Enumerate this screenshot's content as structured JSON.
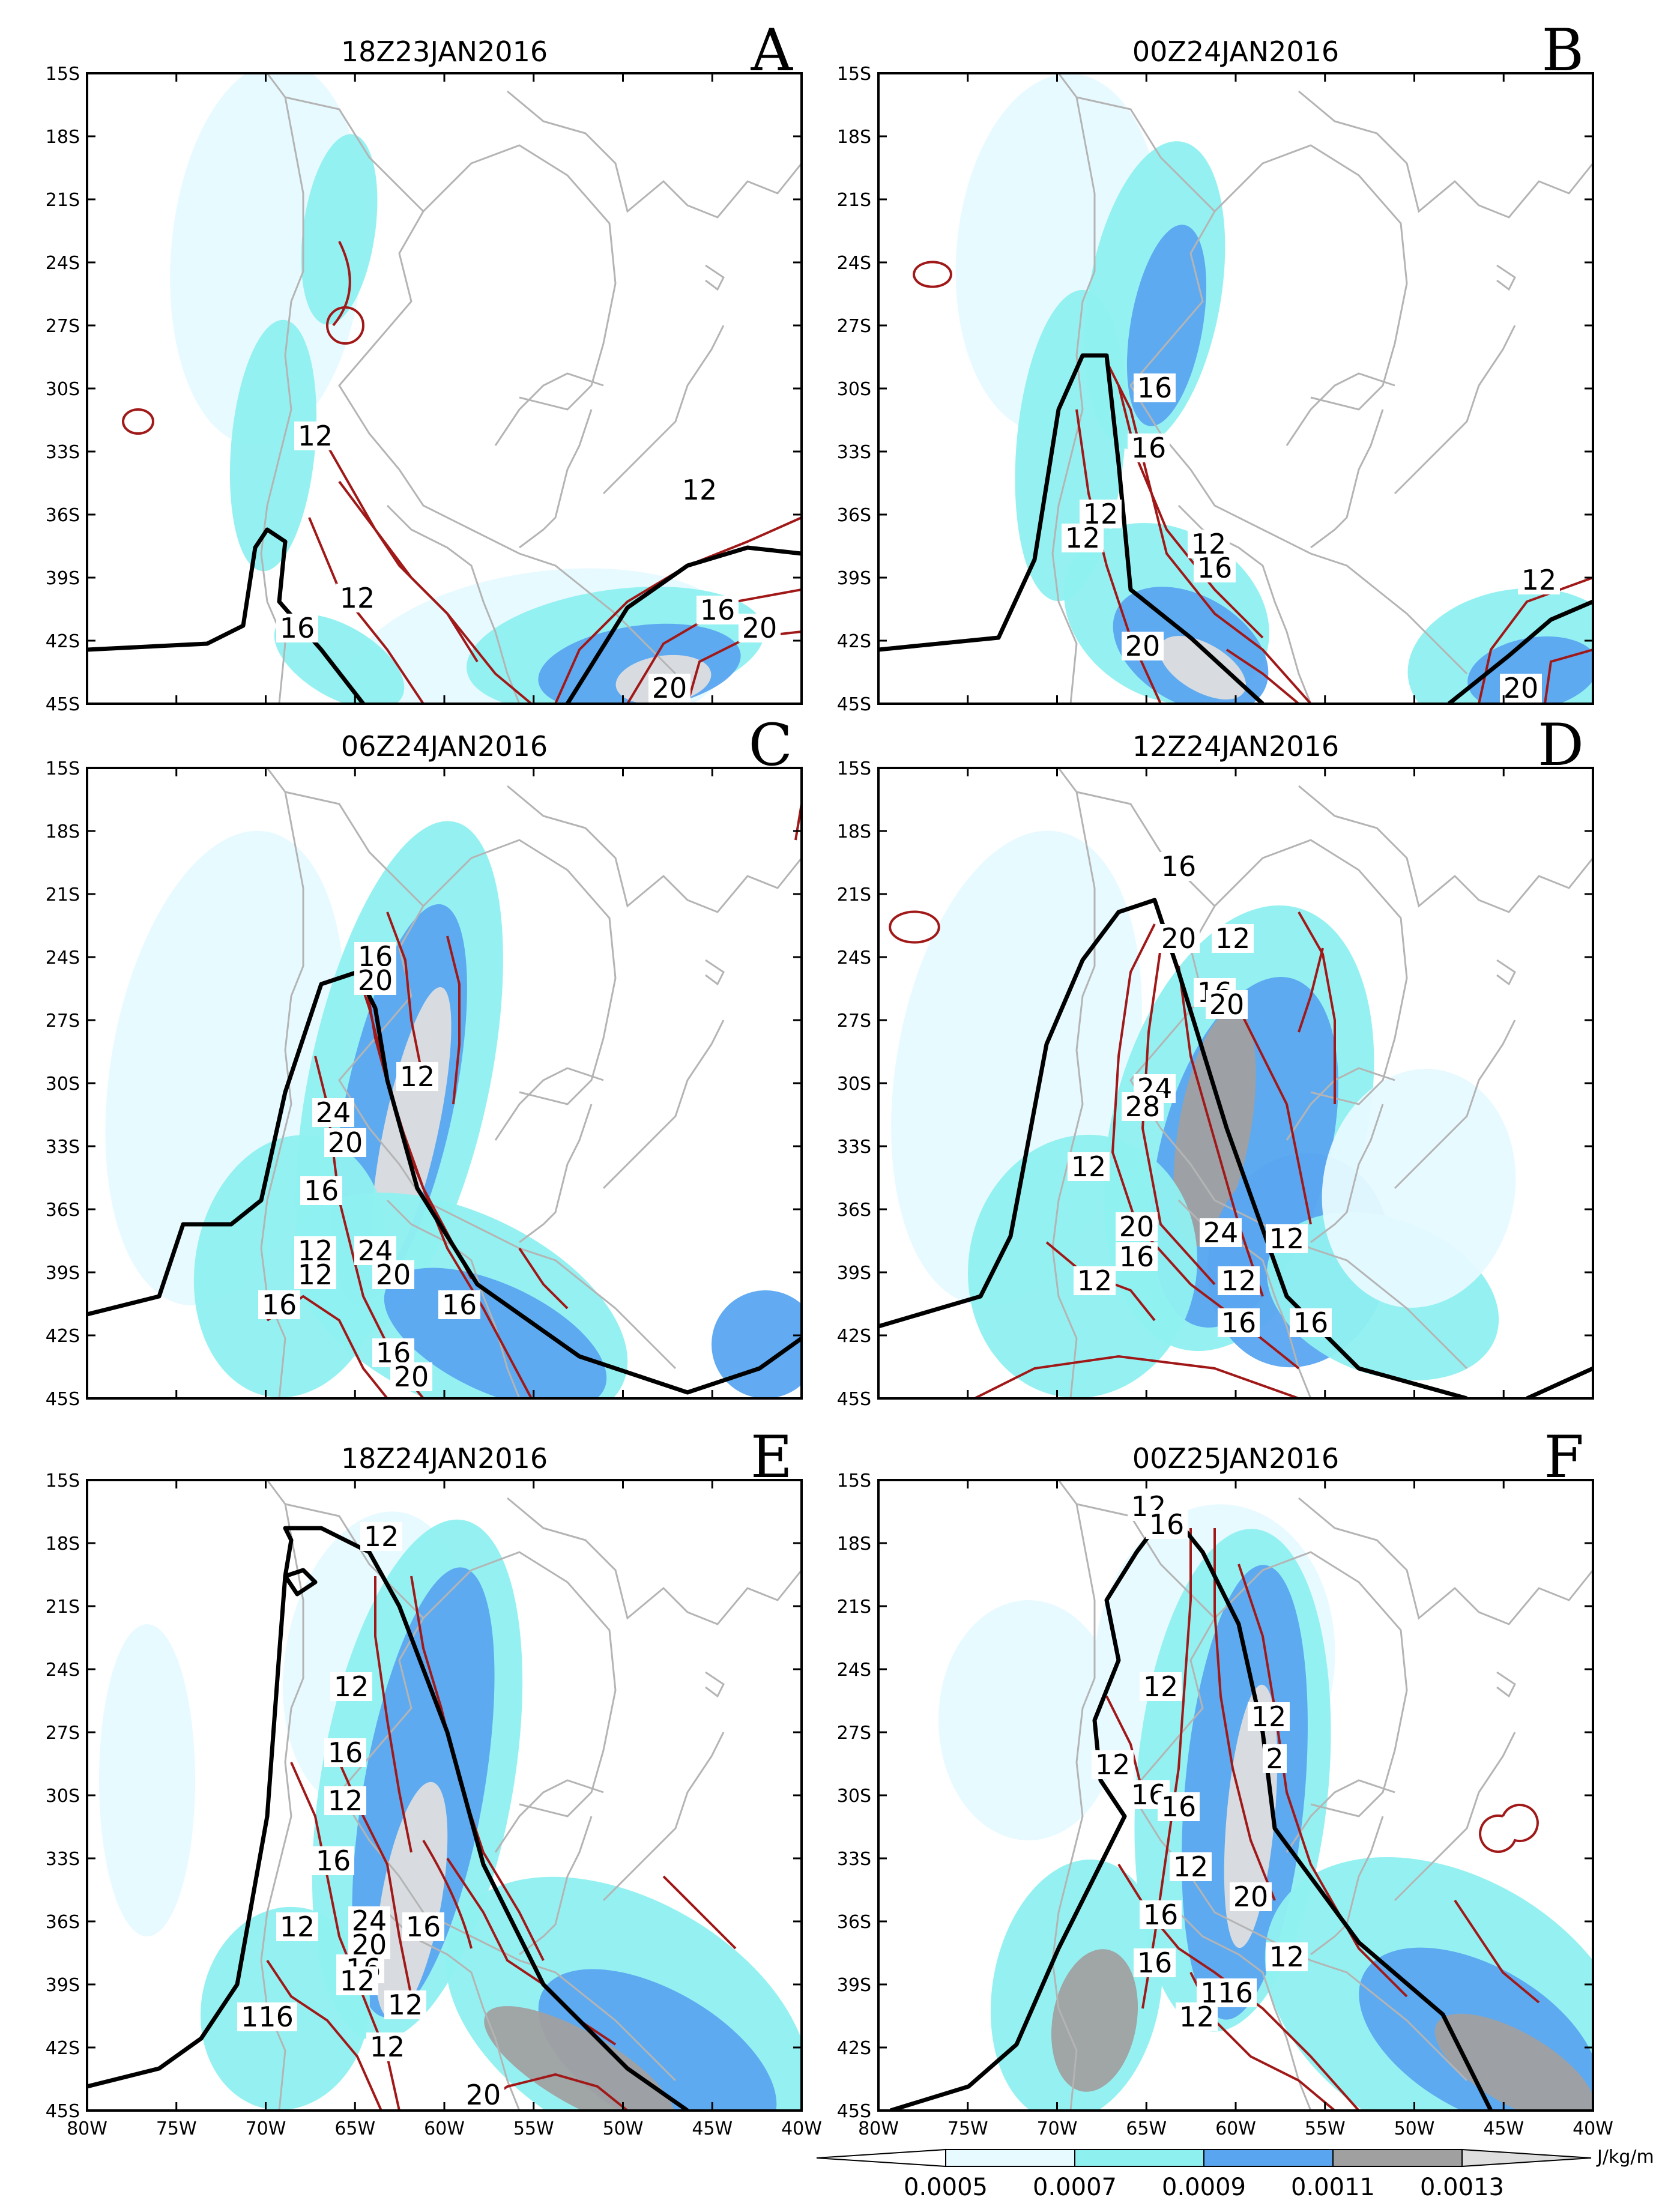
{
  "panels": [
    {
      "letter": "A",
      "title": "18Z23JAN2016",
      "contour_labels": [
        "12",
        "12",
        "12",
        "16",
        "16",
        "20",
        "20"
      ]
    },
    {
      "letter": "B",
      "title": "00Z24JAN2016",
      "contour_labels": [
        "16",
        "16",
        "12",
        "12",
        "12",
        "16",
        "12",
        "20",
        "20"
      ]
    },
    {
      "letter": "C",
      "title": "06Z24JAN2016",
      "contour_labels": [
        "16",
        "20",
        "12",
        "24",
        "20",
        "16",
        "12",
        "24",
        "12",
        "20",
        "16",
        "16",
        "16",
        "20"
      ]
    },
    {
      "letter": "D",
      "title": "12Z24JAN2016",
      "contour_labels": [
        "16",
        "12",
        "20",
        "16",
        "20",
        "24",
        "28",
        "12",
        "20",
        "24",
        "12",
        "16",
        "12",
        "12",
        "16",
        "16"
      ]
    },
    {
      "letter": "E",
      "title": "18Z24JAN2016",
      "contour_labels": [
        "12",
        "12",
        "16",
        "12",
        "16",
        "24",
        "12",
        "20",
        "16",
        "16",
        "16",
        "12",
        "12",
        "12",
        "116",
        "20"
      ]
    },
    {
      "letter": "F",
      "title": "00Z25JAN2016",
      "contour_labels": [
        "12",
        "16",
        "12",
        "12",
        "2",
        "12",
        "16",
        "16",
        "12",
        "16",
        "20",
        "16",
        "12",
        "116",
        "12"
      ]
    }
  ],
  "lat_labels": [
    "15S",
    "18S",
    "21S",
    "24S",
    "27S",
    "30S",
    "33S",
    "36S",
    "39S",
    "42S",
    "45S"
  ],
  "lon_labels": [
    "80W",
    "75W",
    "70W",
    "65W",
    "60W",
    "55W",
    "50W",
    "45W",
    "40W"
  ],
  "colorbar": {
    "ticks": [
      "0.0005",
      "0.0007",
      "0.0009",
      "0.0011",
      "0.0013"
    ],
    "units": "J/kg/m",
    "colors": [
      "#e6faff",
      "#8ff0f0",
      "#5aa5f0",
      "#a0a0a0",
      "#dedede"
    ]
  },
  "style": {
    "coast_color": "#b4b4b4",
    "contour_color": "#a01818",
    "front_color": "#000000"
  }
}
